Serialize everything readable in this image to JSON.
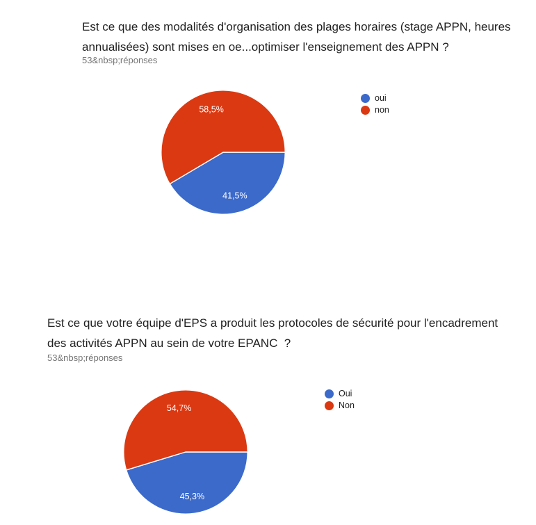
{
  "page": {
    "background": "#ffffff"
  },
  "chart_data": [
    {
      "type": "pie",
      "title": "Est ce que des modalités d'organisation des plages horaires (stage APPN, heures annualisées) sont mises en oe...optimiser l'enseignement des APPN ?",
      "responses_label": "53&nbsp;réponses",
      "categories": [
        "oui",
        "non"
      ],
      "values_percent": [
        41.5,
        58.5
      ],
      "value_labels": [
        "41,5%",
        "58,5%"
      ],
      "colors": [
        "#3b6aca",
        "#db3912"
      ],
      "legend_position": "right",
      "start_angle": "3-oclock",
      "direction": "clockwise",
      "total_responses": 53
    },
    {
      "type": "pie",
      "title": "Est ce que votre équipe d'EPS a produit les protocoles de sécurité pour l'encadrement des activités APPN au sein de votre EPANC  ?",
      "responses_label": "53&nbsp;réponses",
      "categories": [
        "Oui",
        "Non"
      ],
      "values_percent": [
        45.3,
        54.7
      ],
      "value_labels": [
        "45,3%",
        "54,7%"
      ],
      "colors": [
        "#3b6aca",
        "#db3912"
      ],
      "legend_position": "right",
      "start_angle": "3-oclock",
      "direction": "clockwise",
      "total_responses": 53
    }
  ],
  "style": {
    "title_color": "#212121",
    "subtitle_color": "#757575",
    "slice_separator_color": "#ffffff",
    "value_label_color": "#ffffff"
  }
}
